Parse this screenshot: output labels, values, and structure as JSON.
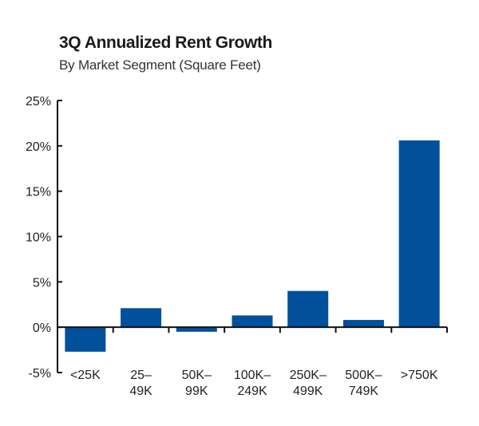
{
  "chart_data": {
    "type": "bar",
    "title": "3Q Annualized Rent Growth",
    "subtitle": "By Market Segment (Square Feet)",
    "xlabel": "",
    "ylabel": "",
    "categories": [
      [
        "<25K"
      ],
      [
        "25–",
        "49K"
      ],
      [
        "50K–",
        "99K"
      ],
      [
        "100K–",
        "249K"
      ],
      [
        "250K–",
        "499K"
      ],
      [
        "500K–",
        "749K"
      ],
      [
        ">750K"
      ]
    ],
    "values": [
      -2.7,
      2.1,
      -0.5,
      1.3,
      4.0,
      0.8,
      20.6
    ],
    "unit": "%",
    "ylim": [
      -5,
      25
    ],
    "yticks": [
      25,
      20,
      15,
      10,
      5,
      0,
      -5
    ],
    "ytick_labels": [
      "25%",
      "20%",
      "15%",
      "10%",
      "5%",
      "0%",
      "-5%"
    ],
    "bar_color": "#00509b",
    "grid": false,
    "legend": "none"
  }
}
